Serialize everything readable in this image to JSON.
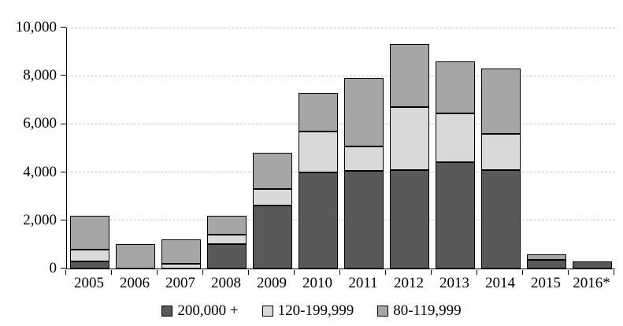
{
  "chart_data": {
    "type": "bar",
    "stacked": true,
    "title": "",
    "xlabel": "",
    "ylabel": "",
    "categories": [
      "2005",
      "2006",
      "2007",
      "2008",
      "2009",
      "2010",
      "2011",
      "2012",
      "2013",
      "2014",
      "2015",
      "2016*"
    ],
    "series": [
      {
        "name": "200,000 +",
        "color": "#595959",
        "values": [
          300,
          0,
          0,
          1000,
          2600,
          4000,
          4050,
          4100,
          4400,
          4100,
          350,
          300
        ]
      },
      {
        "name": "120-199,999",
        "color": "#d9d9d9",
        "values": [
          500,
          0,
          200,
          400,
          700,
          1700,
          1000,
          2600,
          2050,
          1500,
          0,
          0
        ]
      },
      {
        "name": "80-119,999",
        "color": "#a6a6a6",
        "values": [
          1400,
          1000,
          1000,
          800,
          1500,
          1600,
          2850,
          2600,
          2150,
          2700,
          250,
          0
        ]
      }
    ],
    "totals": [
      2200,
      1000,
      1200,
      2200,
      4800,
      7300,
      7900,
      9300,
      8600,
      8300,
      600,
      300
    ],
    "ylim": [
      0,
      10000
    ],
    "ytick_interval": 2000,
    "yticks": [
      "0",
      "2,000",
      "4,000",
      "6,000",
      "8,000",
      "10,000"
    ],
    "grid": "horizontal-dashed",
    "gridline_color": "#c6c6c6",
    "bar_border_color": "#000000",
    "axis_color": "#000000",
    "legend_position": "bottom"
  }
}
